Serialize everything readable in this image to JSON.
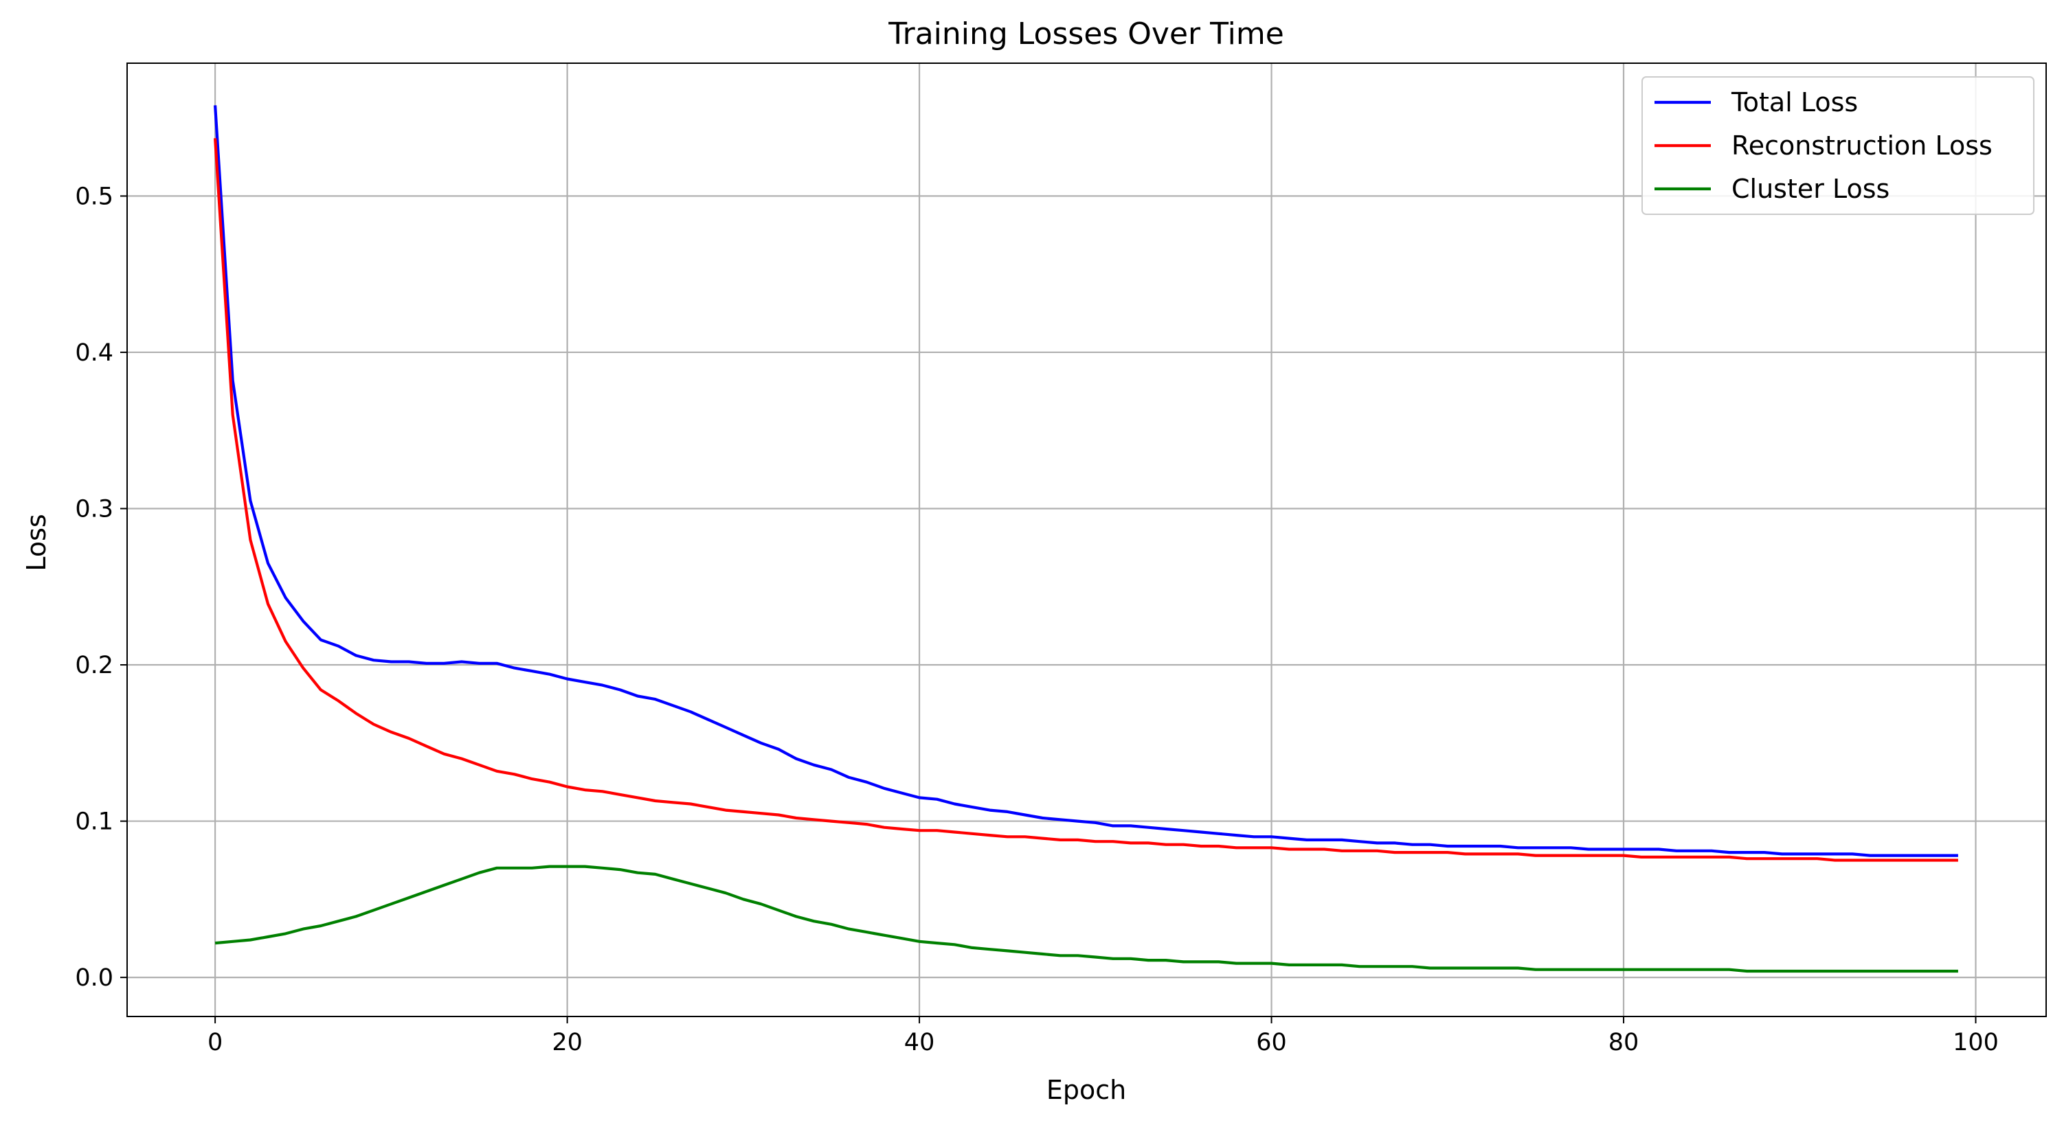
{
  "chart_data": {
    "type": "line",
    "title": "Training Losses Over Time",
    "xlabel": "Epoch",
    "ylabel": "Loss",
    "xlim": [
      -5,
      104
    ],
    "ylim": [
      -0.025,
      0.585
    ],
    "xticks": [
      0,
      20,
      40,
      60,
      80,
      100
    ],
    "xtick_labels": [
      "0",
      "20",
      "40",
      "60",
      "80",
      "100"
    ],
    "yticks": [
      0.0,
      0.1,
      0.2,
      0.3,
      0.4,
      0.5
    ],
    "ytick_labels": [
      "0.0",
      "0.1",
      "0.2",
      "0.3",
      "0.4",
      "0.5"
    ],
    "grid": true,
    "legend_position": "top-right",
    "series": [
      {
        "name": "Total Loss",
        "color": "#0000ff",
        "x_start": 0,
        "values": [
          0.558,
          0.382,
          0.305,
          0.265,
          0.243,
          0.228,
          0.216,
          0.212,
          0.206,
          0.203,
          0.202,
          0.202,
          0.201,
          0.201,
          0.202,
          0.201,
          0.201,
          0.198,
          0.196,
          0.194,
          0.191,
          0.189,
          0.187,
          0.184,
          0.18,
          0.178,
          0.174,
          0.17,
          0.165,
          0.16,
          0.155,
          0.15,
          0.146,
          0.14,
          0.136,
          0.133,
          0.128,
          0.125,
          0.121,
          0.118,
          0.115,
          0.114,
          0.111,
          0.109,
          0.107,
          0.106,
          0.104,
          0.102,
          0.101,
          0.1,
          0.099,
          0.097,
          0.097,
          0.096,
          0.095,
          0.094,
          0.093,
          0.092,
          0.091,
          0.09,
          0.09,
          0.089,
          0.088,
          0.088,
          0.088,
          0.087,
          0.086,
          0.086,
          0.085,
          0.085,
          0.084,
          0.084,
          0.084,
          0.084,
          0.083,
          0.083,
          0.083,
          0.083,
          0.082,
          0.082,
          0.082,
          0.082,
          0.082,
          0.081,
          0.081,
          0.081,
          0.08,
          0.08,
          0.08,
          0.079,
          0.079,
          0.079,
          0.079,
          0.079,
          0.078,
          0.078,
          0.078,
          0.078,
          0.078,
          0.078
        ]
      },
      {
        "name": "Reconstruction Loss",
        "color": "#ff0000",
        "x_start": 0,
        "values": [
          0.537,
          0.36,
          0.28,
          0.239,
          0.215,
          0.198,
          0.184,
          0.177,
          0.169,
          0.162,
          0.157,
          0.153,
          0.148,
          0.143,
          0.14,
          0.136,
          0.132,
          0.13,
          0.127,
          0.125,
          0.122,
          0.12,
          0.119,
          0.117,
          0.115,
          0.113,
          0.112,
          0.111,
          0.109,
          0.107,
          0.106,
          0.105,
          0.104,
          0.102,
          0.101,
          0.1,
          0.099,
          0.098,
          0.096,
          0.095,
          0.094,
          0.094,
          0.093,
          0.092,
          0.091,
          0.09,
          0.09,
          0.089,
          0.088,
          0.088,
          0.087,
          0.087,
          0.086,
          0.086,
          0.085,
          0.085,
          0.084,
          0.084,
          0.083,
          0.083,
          0.083,
          0.082,
          0.082,
          0.082,
          0.081,
          0.081,
          0.081,
          0.08,
          0.08,
          0.08,
          0.08,
          0.079,
          0.079,
          0.079,
          0.079,
          0.078,
          0.078,
          0.078,
          0.078,
          0.078,
          0.078,
          0.077,
          0.077,
          0.077,
          0.077,
          0.077,
          0.077,
          0.076,
          0.076,
          0.076,
          0.076,
          0.076,
          0.075,
          0.075,
          0.075,
          0.075,
          0.075,
          0.075,
          0.075,
          0.075
        ]
      },
      {
        "name": "Cluster Loss",
        "color": "#008000",
        "x_start": 0,
        "values": [
          0.022,
          0.023,
          0.024,
          0.026,
          0.028,
          0.031,
          0.033,
          0.036,
          0.039,
          0.043,
          0.047,
          0.051,
          0.055,
          0.059,
          0.063,
          0.067,
          0.07,
          0.07,
          0.07,
          0.071,
          0.071,
          0.071,
          0.07,
          0.069,
          0.067,
          0.066,
          0.063,
          0.06,
          0.057,
          0.054,
          0.05,
          0.047,
          0.043,
          0.039,
          0.036,
          0.034,
          0.031,
          0.029,
          0.027,
          0.025,
          0.023,
          0.022,
          0.021,
          0.019,
          0.018,
          0.017,
          0.016,
          0.015,
          0.014,
          0.014,
          0.013,
          0.012,
          0.012,
          0.011,
          0.011,
          0.01,
          0.01,
          0.01,
          0.009,
          0.009,
          0.009,
          0.008,
          0.008,
          0.008,
          0.008,
          0.007,
          0.007,
          0.007,
          0.007,
          0.006,
          0.006,
          0.006,
          0.006,
          0.006,
          0.006,
          0.005,
          0.005,
          0.005,
          0.005,
          0.005,
          0.005,
          0.005,
          0.005,
          0.005,
          0.005,
          0.005,
          0.005,
          0.004,
          0.004,
          0.004,
          0.004,
          0.004,
          0.004,
          0.004,
          0.004,
          0.004,
          0.004,
          0.004,
          0.004,
          0.004
        ]
      }
    ]
  }
}
